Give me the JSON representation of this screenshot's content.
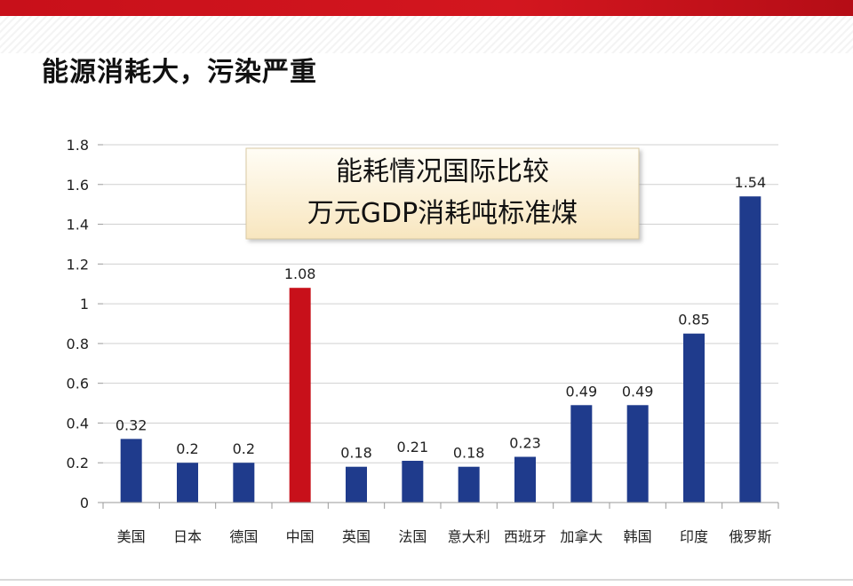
{
  "page": {
    "title": "能源消耗大，污染严重"
  },
  "callout": {
    "line1": "能耗情况国际比较",
    "line2": "万元GDP消耗吨标准煤"
  },
  "colors": {
    "bar_default": "#1f3b8c",
    "bar_highlight": "#c8101a",
    "grid": "#d0d0d0",
    "accent": "#c8101a"
  },
  "chart_data": {
    "type": "bar",
    "categories": [
      "美国",
      "日本",
      "德国",
      "中国",
      "英国",
      "法国",
      "意大利",
      "西班牙",
      "加拿大",
      "韩国",
      "印度",
      "俄罗斯"
    ],
    "values": [
      0.32,
      0.2,
      0.2,
      1.08,
      0.18,
      0.21,
      0.18,
      0.23,
      0.49,
      0.49,
      0.85,
      1.54
    ],
    "data_labels": [
      "0.32",
      "0.2",
      "0.2",
      "1.08",
      "0.18",
      "0.21",
      "0.18",
      "0.23",
      "0.49",
      "0.49",
      "0.85",
      "1.54"
    ],
    "highlight_category": "中国",
    "ylim": [
      0,
      1.8
    ],
    "yticks": [
      0,
      0.2,
      0.4,
      0.6,
      0.8,
      1,
      1.2,
      1.4,
      1.6,
      1.8
    ],
    "ytick_labels": [
      "0",
      "0.2",
      "0.4",
      "0.6",
      "0.8",
      "1",
      "1.2",
      "1.4",
      "1.6",
      "1.8"
    ],
    "grid": true,
    "legend": false,
    "title": "",
    "xlabel": "",
    "ylabel": ""
  }
}
